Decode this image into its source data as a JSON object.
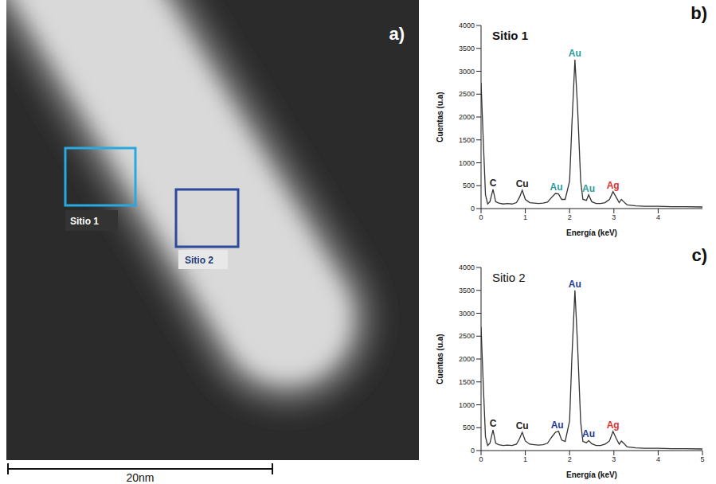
{
  "image": {
    "label": "a)",
    "regions": [
      "Sitio 1",
      "Sitio 2"
    ],
    "scale_bar": "20nm"
  },
  "chart_data": [
    {
      "type": "line",
      "label": "b)",
      "title": "Sitio 1",
      "x_label": "Energía (keV)",
      "y_label": "Cuentas (u.a)",
      "color": "#333333",
      "xlim": [
        0,
        5
      ],
      "xticks": [
        0,
        1,
        2,
        3,
        4
      ],
      "ylim": [
        0,
        4000
      ],
      "yticks": [
        0,
        500,
        1000,
        1500,
        2000,
        2500,
        3000,
        3500,
        4000
      ],
      "x": [
        0,
        0.05,
        0.1,
        0.15,
        0.2,
        0.27,
        0.33,
        0.4,
        0.5,
        0.6,
        0.7,
        0.8,
        0.87,
        0.93,
        1.0,
        1.1,
        1.2,
        1.3,
        1.4,
        1.5,
        1.6,
        1.68,
        1.75,
        1.82,
        1.9,
        2.0,
        2.05,
        2.12,
        2.18,
        2.25,
        2.3,
        2.38,
        2.43,
        2.5,
        2.6,
        2.7,
        2.8,
        2.9,
        2.98,
        3.05,
        3.12,
        3.17,
        3.22,
        3.3,
        3.5,
        3.7,
        4.0,
        4.3,
        4.6,
        5.0
      ],
      "values": [
        2750,
        1500,
        300,
        100,
        150,
        420,
        150,
        120,
        100,
        110,
        100,
        130,
        250,
        400,
        200,
        130,
        120,
        110,
        120,
        140,
        250,
        330,
        320,
        200,
        200,
        600,
        1800,
        3250,
        2200,
        600,
        200,
        180,
        300,
        150,
        110,
        110,
        130,
        200,
        370,
        250,
        130,
        200,
        150,
        80,
        60,
        50,
        50,
        40,
        40,
        35
      ],
      "annotations": [
        {
          "text": "C",
          "x": 0.27,
          "color": "#222222"
        },
        {
          "text": "Cu",
          "x": 0.93,
          "color": "#222222"
        },
        {
          "text": "Au",
          "x": 1.7,
          "color": "#2a9d9a"
        },
        {
          "text": "Au",
          "x": 2.12,
          "color": "#2a9d9a"
        },
        {
          "text": "Au",
          "x": 2.43,
          "color": "#2a9d9a"
        },
        {
          "text": "Ag",
          "x": 2.98,
          "color": "#e03030"
        }
      ]
    },
    {
      "type": "line",
      "label": "c)",
      "title": "Sitio 2",
      "x_label": "Energía (keV)",
      "y_label": "Cuentas (u.a)",
      "color": "#333333",
      "xlim": [
        0,
        5
      ],
      "xticks": [
        0,
        1,
        2,
        3,
        4,
        5
      ],
      "ylim": [
        0,
        4000
      ],
      "yticks": [
        0,
        500,
        1000,
        1500,
        2000,
        2500,
        3000,
        3500,
        4000
      ],
      "x": [
        0,
        0.05,
        0.1,
        0.15,
        0.2,
        0.27,
        0.33,
        0.4,
        0.5,
        0.6,
        0.7,
        0.8,
        0.87,
        0.93,
        1.0,
        1.1,
        1.2,
        1.3,
        1.4,
        1.5,
        1.6,
        1.68,
        1.75,
        1.82,
        1.9,
        2.0,
        2.05,
        2.12,
        2.18,
        2.25,
        2.3,
        2.38,
        2.43,
        2.5,
        2.6,
        2.7,
        2.8,
        2.9,
        2.98,
        3.05,
        3.12,
        3.17,
        3.22,
        3.3,
        3.5,
        3.7,
        4.0,
        4.3,
        4.6,
        5.0
      ],
      "values": [
        2700,
        1450,
        300,
        110,
        160,
        450,
        160,
        130,
        110,
        120,
        110,
        140,
        260,
        400,
        210,
        140,
        130,
        120,
        130,
        160,
        300,
        400,
        420,
        230,
        200,
        650,
        2000,
        3500,
        2300,
        620,
        200,
        170,
        220,
        150,
        110,
        110,
        140,
        210,
        420,
        270,
        140,
        210,
        160,
        80,
        60,
        50,
        50,
        40,
        40,
        35
      ],
      "annotations": [
        {
          "text": "C",
          "x": 0.27,
          "color": "#222222"
        },
        {
          "text": "Cu",
          "x": 0.93,
          "color": "#222222"
        },
        {
          "text": "Au",
          "x": 1.72,
          "color": "#1f3c99"
        },
        {
          "text": "Au",
          "x": 2.12,
          "color": "#1f3c99"
        },
        {
          "text": "Au",
          "x": 2.43,
          "color": "#1f3c99"
        },
        {
          "text": "Ag",
          "x": 2.98,
          "color": "#e03030"
        }
      ]
    }
  ]
}
